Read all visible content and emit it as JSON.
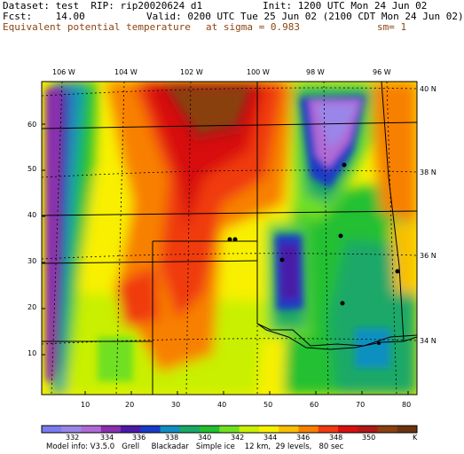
{
  "header": {
    "dataset": "Dataset: test  RIP: rip20020624 d1",
    "init": "Init: 1200 UTC Mon 24 Jun 02",
    "fcst": "Fcst:    14.00",
    "valid": "Valid: 0200 UTC Tue 25 Jun 02 (2100 CDT Mon 24 Jun 02)",
    "field": "Equivalent potential temperature",
    "sigma": "at sigma = 0.983",
    "smoothing": "sm= 1"
  },
  "map": {
    "lon_labels": [
      "106 W",
      "104 W",
      "102 W",
      "100 W",
      "98 W",
      "96 W"
    ],
    "lat_labels": [
      "40 N",
      "38 N",
      "36 N",
      "34 N"
    ],
    "y_ticks": [
      "60",
      "50",
      "40",
      "30",
      "20",
      "10"
    ],
    "x_ticks": [
      "10",
      "20",
      "30",
      "40",
      "50",
      "60",
      "70",
      "80"
    ],
    "colors": {
      "c330": "#7b7bf0",
      "c332": "#9a86e8",
      "c334": "#b06ad6",
      "c336": "#8a2fb0",
      "c338": "#4a1aa8",
      "c339": "#1a3ac8",
      "c340": "#1090c0",
      "c341": "#1aa868",
      "c342": "#20c030",
      "c343": "#70e020",
      "c344": "#c8f000",
      "c345": "#f8f000",
      "c346": "#f8c000",
      "c347": "#f88000",
      "c348": "#f03a10",
      "c349": "#d81010",
      "c350": "#b01818",
      "c352": "#8a4010",
      "c354": "#6a3410"
    }
  },
  "colorbar": {
    "labels": [
      "332",
      "334",
      "336",
      "338",
      "340",
      "342",
      "344",
      "346",
      "348",
      "350"
    ],
    "units": "K"
  },
  "footer": {
    "model_info": "Model info: V3.5.0   Grell     Blackadar   Simple ice    12 km,  29 levels,   80 sec"
  }
}
